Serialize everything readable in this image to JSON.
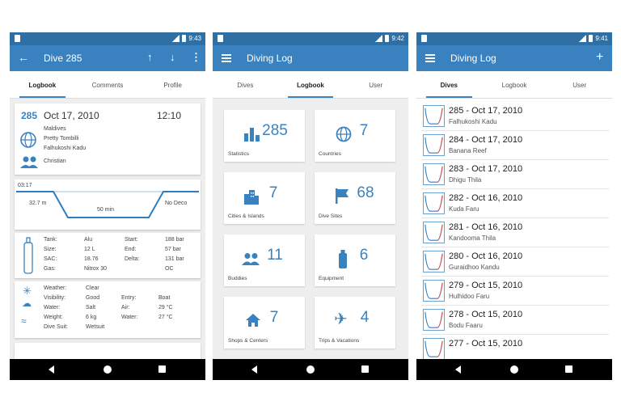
{
  "screens": [
    {
      "time": "9:43",
      "appbar_title": "Dive 285",
      "tabs": [
        "Logbook",
        "Comments",
        "Profile"
      ],
      "header": {
        "number": "285",
        "date": "Oct 17, 2010",
        "time": "12:10",
        "location": [
          "Maldives",
          "Pretty Tombilli",
          "Falhukoshi Kadu"
        ],
        "buddy": "Christian"
      },
      "profile": {
        "duration": "03:17",
        "max_depth": "32.7 m",
        "bottom_time": "50 min",
        "deco": "No Deco"
      },
      "tank": {
        "rows": [
          {
            "k1": "Tank:",
            "v1": "Alu",
            "k2": "Start:",
            "v2": "188 bar"
          },
          {
            "k1": "Size:",
            "v1": "12 L",
            "k2": "End:",
            "v2": "57 bar"
          },
          {
            "k1": "SAC:",
            "v1": "18.76",
            "k2": "Delta:",
            "v2": "131 bar"
          },
          {
            "k1": "Gas:",
            "v1": "Nitrox 30",
            "k2": "",
            "v2": "OC"
          }
        ]
      },
      "conditions": {
        "rows": [
          {
            "k1": "Weather:",
            "v1": "Clear",
            "k2": "",
            "v2": ""
          },
          {
            "k1": "Visibility:",
            "v1": "Good",
            "k2": "Entry:",
            "v2": "Boat"
          },
          {
            "k1": "Water:",
            "v1": "Salt",
            "k2": "Air:",
            "v2": "29 °C"
          },
          {
            "k1": "Weight:",
            "v1": "6 kg",
            "k2": "Water:",
            "v2": "27 °C"
          },
          {
            "k1": "Dive Suit:",
            "v1": "Wetsuit",
            "k2": "",
            "v2": ""
          }
        ]
      }
    },
    {
      "time": "9:42",
      "appbar_title": "Diving Log",
      "tabs": [
        "Dives",
        "Logbook",
        "User"
      ],
      "tiles": [
        {
          "value": "285",
          "name": "Statistics",
          "icon": "bar-chart-icon"
        },
        {
          "value": "7",
          "name": "Countries",
          "icon": "globe-icon"
        },
        {
          "value": "7",
          "name": "Cities & Islands",
          "icon": "city-icon"
        },
        {
          "value": "68",
          "name": "Dive Sites",
          "icon": "flag-icon"
        },
        {
          "value": "11",
          "name": "Buddies",
          "icon": "people-icon"
        },
        {
          "value": "6",
          "name": "Equipment",
          "icon": "tank-icon"
        },
        {
          "value": "7",
          "name": "Shops & Centers",
          "icon": "home-icon"
        },
        {
          "value": "4",
          "name": "Trips & Vacations",
          "icon": "airplane-icon"
        }
      ]
    },
    {
      "time": "9:41",
      "appbar_title": "Diving Log",
      "tabs": [
        "Dives",
        "Logbook",
        "User"
      ],
      "dives": [
        {
          "title": "285 - Oct 17, 2010",
          "site": "Falhukoshi Kadu"
        },
        {
          "title": "284 - Oct 17, 2010",
          "site": "Banana Reef"
        },
        {
          "title": "283 - Oct 17, 2010",
          "site": "Dhigu Thila"
        },
        {
          "title": "282 - Oct 16, 2010",
          "site": "Kuda Faru"
        },
        {
          "title": "281 - Oct 16, 2010",
          "site": "Kandooma Thila"
        },
        {
          "title": "280 - Oct 16, 2010",
          "site": "Guraidhoo Kandu"
        },
        {
          "title": "279 - Oct 15, 2010",
          "site": "Hulhidoo Faru"
        },
        {
          "title": "278 - Oct 15, 2010",
          "site": "Bodu Faaru"
        },
        {
          "title": "277 - Oct 15, 2010",
          "site": ""
        }
      ]
    }
  ],
  "colors": {
    "primary": "#3a82bf",
    "statusbar": "#2f6fa3",
    "profile_line": "#2e7dc0",
    "thumb_red": "#e05050"
  }
}
